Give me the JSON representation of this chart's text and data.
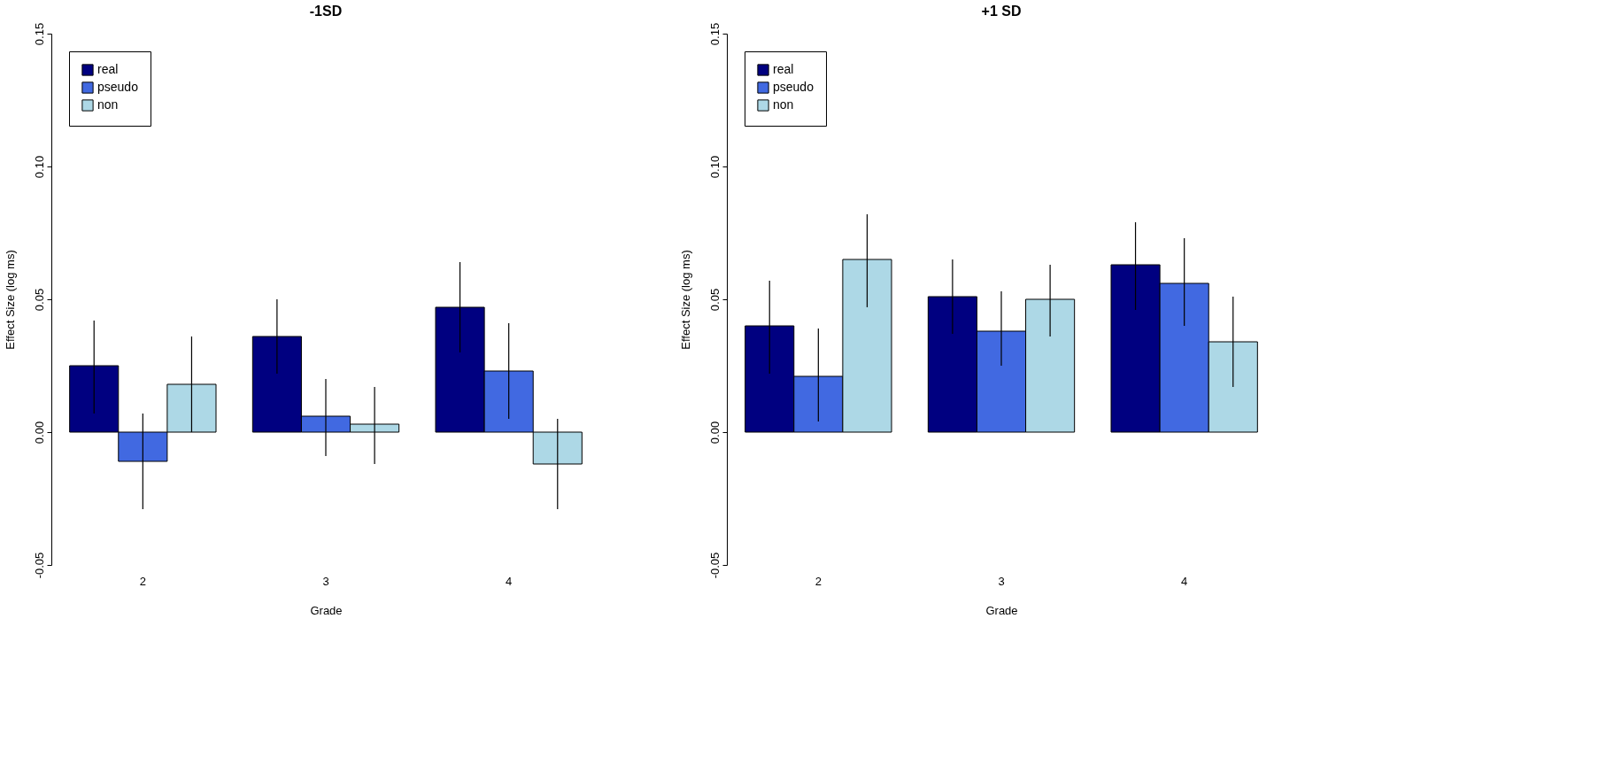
{
  "chart_data": [
    {
      "type": "bar",
      "title": "-1SD",
      "xlabel": "Grade",
      "ylabel": "Effect Size (log ms)",
      "categories": [
        "2",
        "3",
        "4"
      ],
      "ylim": [
        -0.05,
        0.15
      ],
      "yticks": [
        {
          "value": -0.05,
          "label": "-0.05"
        },
        {
          "value": 0,
          "label": "0.00"
        },
        {
          "value": 0.05,
          "label": "0.05"
        },
        {
          "value": 0.1,
          "label": "0.10"
        },
        {
          "value": 0.15,
          "label": "0.15"
        }
      ],
      "grid": false,
      "legend": "top left",
      "series": [
        {
          "name": "real",
          "color": "#000080",
          "values": [
            0.025,
            0.036,
            0.047
          ],
          "errors": [
            [
              0.007,
              0.042
            ],
            [
              0.022,
              0.05
            ],
            [
              0.03,
              0.064
            ]
          ]
        },
        {
          "name": "pseudo",
          "color": "#4169e1",
          "values": [
            -0.011,
            0.006,
            0.023
          ],
          "errors": [
            [
              -0.029,
              0.007
            ],
            [
              -0.009,
              0.02
            ],
            [
              0.005,
              0.041
            ]
          ]
        },
        {
          "name": "non",
          "color": "#add8e6",
          "values": [
            0.018,
            0.003,
            -0.012
          ],
          "errors": [
            [
              0.0,
              0.036
            ],
            [
              -0.012,
              0.017
            ],
            [
              -0.029,
              0.005
            ]
          ]
        }
      ]
    },
    {
      "type": "bar",
      "title": "+1 SD",
      "xlabel": "Grade",
      "ylabel": "Effect Size (log ms)",
      "categories": [
        "2",
        "3",
        "4"
      ],
      "ylim": [
        -0.05,
        0.15
      ],
      "yticks": [
        {
          "value": -0.05,
          "label": "-0.05"
        },
        {
          "value": 0,
          "label": "0.00"
        },
        {
          "value": 0.05,
          "label": "0.05"
        },
        {
          "value": 0.1,
          "label": "0.10"
        },
        {
          "value": 0.15,
          "label": "0.15"
        }
      ],
      "grid": false,
      "legend": "top left",
      "series": [
        {
          "name": "real",
          "color": "#000080",
          "values": [
            0.04,
            0.051,
            0.063
          ],
          "errors": [
            [
              0.022,
              0.057
            ],
            [
              0.037,
              0.065
            ],
            [
              0.046,
              0.079
            ]
          ]
        },
        {
          "name": "pseudo",
          "color": "#4169e1",
          "values": [
            0.021,
            0.038,
            0.056
          ],
          "errors": [
            [
              0.004,
              0.039
            ],
            [
              0.025,
              0.053
            ],
            [
              0.04,
              0.073
            ]
          ]
        },
        {
          "name": "non",
          "color": "#add8e6",
          "values": [
            0.065,
            0.05,
            0.034
          ],
          "errors": [
            [
              0.047,
              0.082
            ],
            [
              0.036,
              0.063
            ],
            [
              0.017,
              0.051
            ]
          ]
        }
      ]
    }
  ]
}
